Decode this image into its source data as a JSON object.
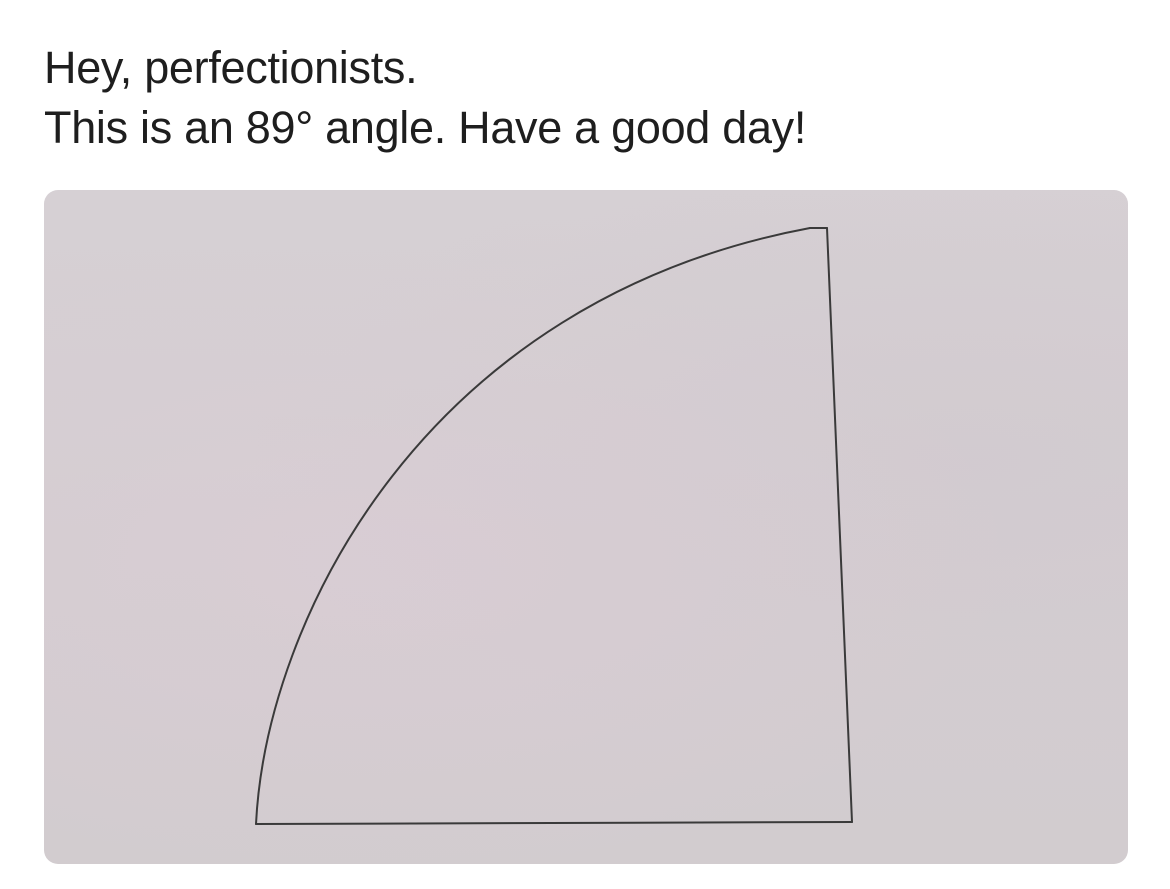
{
  "caption": {
    "line1": "Hey, perfectionists.",
    "line2": "This is an 89° angle. Have a good day!"
  },
  "colors": {
    "text": "#1e1e1e",
    "paper": "#d4ced2",
    "ink": "#3a3a3a"
  },
  "photo": {
    "subject": "hand-drawn quarter-circle sector on paper"
  }
}
